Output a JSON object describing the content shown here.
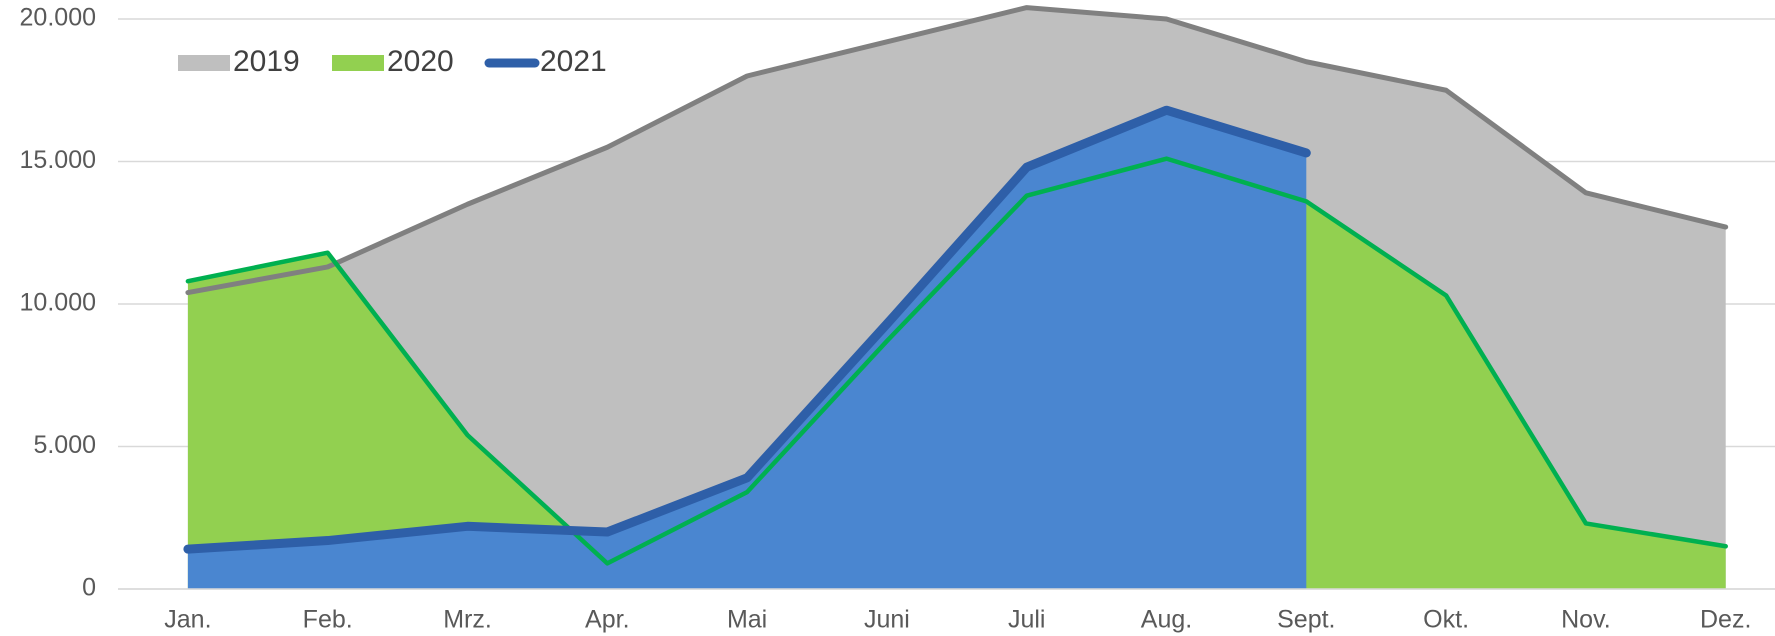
{
  "chart_data": {
    "type": "area",
    "categories": [
      "Jan.",
      "Feb.",
      "Mrz.",
      "Apr.",
      "Mai",
      "Juni",
      "Juli",
      "Aug.",
      "Sept.",
      "Okt.",
      "Nov.",
      "Dez."
    ],
    "series": [
      {
        "name": "2019",
        "color": "#bfbfbf",
        "line_color": "#808080",
        "values": [
          10400,
          11300,
          13500,
          15500,
          18000,
          19200,
          20400,
          20000,
          18500,
          17500,
          13900,
          12700
        ]
      },
      {
        "name": "2020",
        "color": "#92d050",
        "line_color": "#00b050",
        "values": [
          10800,
          11800,
          5400,
          900,
          3400,
          8700,
          13800,
          15100,
          13600,
          10300,
          2300,
          1500
        ]
      },
      {
        "name": "2021",
        "color": "#4a86d0",
        "line_color": "#2e5fa8",
        "values": [
          1400,
          1700,
          2200,
          2000,
          3900,
          9300,
          14800,
          16800,
          15300,
          null,
          null,
          null
        ]
      }
    ],
    "ylim": [
      0,
      20000
    ],
    "yticks": [
      0,
      {
        "value": 5000,
        "label": "5.000"
      },
      {
        "value": 10000,
        "label": "10.000"
      },
      {
        "value": 15000,
        "label": "15.000"
      },
      {
        "value": 20000,
        "label": "20.000"
      }
    ],
    "grid": true,
    "legend": "upper left"
  }
}
